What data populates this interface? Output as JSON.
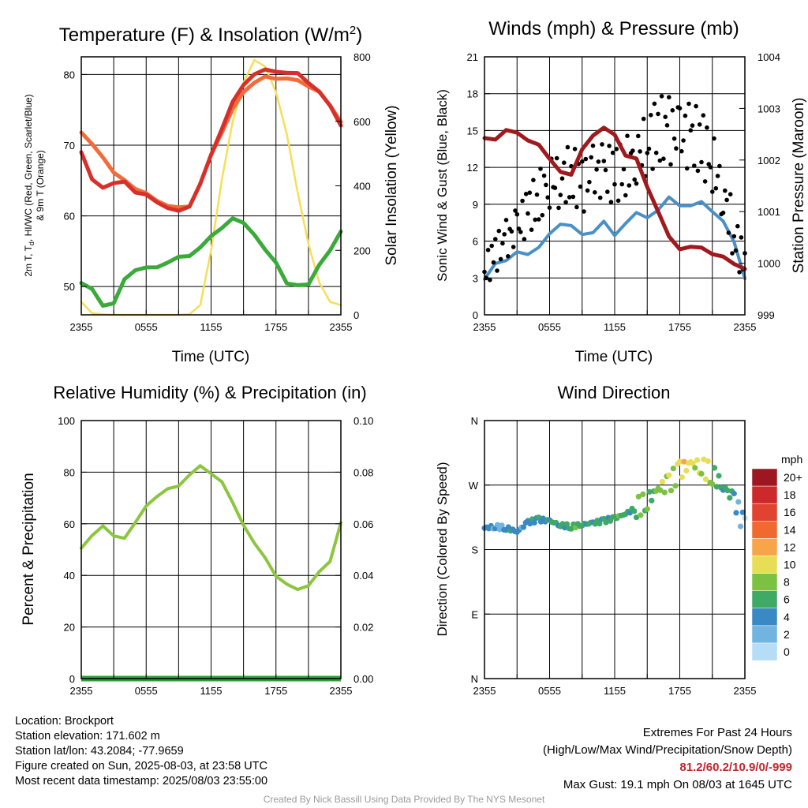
{
  "chart_data": [
    {
      "type": "line",
      "title": "Temperature (F) & Insolation (W/m²)",
      "xlabel": "Time (UTC)",
      "ylabel_lines": [
        "2m T, Td, HI/WC (Red, Green, Scarlet/Blue)",
        "& 9m T (Orange)"
      ],
      "y2label": "Solar Insolation (Yellow)",
      "xticks": [
        "2355",
        "0555",
        "1155",
        "1755",
        "2355"
      ],
      "ylim": [
        46,
        82.5
      ],
      "yticks": [
        50,
        60,
        70,
        80
      ],
      "y2lim": [
        0,
        800
      ],
      "y2ticks": [
        0,
        200,
        400,
        600,
        800
      ],
      "x_hours": [
        0,
        1,
        2,
        3,
        4,
        5,
        6,
        7,
        8,
        9,
        10,
        11,
        12,
        13,
        14,
        15,
        16,
        17,
        18,
        19,
        20,
        21,
        22,
        23,
        24
      ],
      "series": [
        {
          "color": "#d7302a",
          "axis": "left",
          "values": [
            69.0,
            65.0,
            64.2,
            64.5,
            64.8,
            63.5,
            62.8,
            62.0,
            61.2,
            60.5,
            61.5,
            64.5,
            68.5,
            72.5,
            76.0,
            78.5,
            80.2,
            80.5,
            80.5,
            80.3,
            80.0,
            79.0,
            77.5,
            75.5,
            73.0
          ]
        },
        {
          "color": "#f26b3a",
          "axis": "left",
          "values": [
            71.8,
            70.0,
            68.5,
            66.0,
            65.0,
            64.0,
            63.0,
            62.2,
            61.5,
            61.0,
            61.5,
            64.5,
            68.5,
            72.0,
            75.0,
            77.5,
            79.0,
            79.5,
            79.5,
            79.5,
            79.0,
            78.5,
            77.5,
            75.5,
            73.5
          ]
        },
        {
          "color": "#3aaa3a",
          "axis": "left",
          "values": [
            50.5,
            49.5,
            47.5,
            47.5,
            51.0,
            52.5,
            52.5,
            52.8,
            53.5,
            54.0,
            54.5,
            55.5,
            57.0,
            58.5,
            59.5,
            59.0,
            57.5,
            55.0,
            53.5,
            50.5,
            50.0,
            50.5,
            53.0,
            55.0,
            58.0
          ]
        },
        {
          "color": "#f6df55",
          "axis": "right",
          "values": [
            40,
            5,
            2,
            0,
            0,
            0,
            0,
            0,
            0,
            0,
            2,
            30,
            200,
            420,
            600,
            720,
            790,
            770,
            690,
            560,
            380,
            220,
            100,
            40,
            30
          ]
        }
      ]
    },
    {
      "type": "line",
      "title": "Winds (mph) & Pressure (mb)",
      "xlabel": "Time (UTC)",
      "ylabel": "Sonic Wind & Gust (Blue, Black)",
      "y2label": "Station Pressure (Maroon)",
      "xticks": [
        "2355",
        "0555",
        "1155",
        "1755",
        "2355"
      ],
      "ylim": [
        0,
        21
      ],
      "yticks": [
        0,
        3,
        6,
        9,
        12,
        15,
        18,
        21
      ],
      "y2lim": [
        999,
        1004
      ],
      "y2ticks": [
        999,
        1000,
        1001,
        1002,
        1003,
        1004
      ],
      "x_hours": [
        0,
        1,
        2,
        3,
        4,
        5,
        6,
        7,
        8,
        9,
        10,
        11,
        12,
        13,
        14,
        15,
        16,
        17,
        18,
        19,
        20,
        21,
        22,
        23,
        24
      ],
      "series": [
        {
          "color": "#4a90c8",
          "axis": "left",
          "kind": "line",
          "values": [
            2.8,
            4.2,
            4.5,
            5.0,
            5.0,
            5.5,
            6.5,
            7.5,
            7.2,
            6.5,
            6.8,
            7.5,
            6.5,
            7.5,
            8.2,
            8.0,
            8.5,
            9.5,
            9.0,
            8.8,
            9.2,
            8.5,
            7.5,
            6.0,
            3.0
          ]
        },
        {
          "color": "#000000",
          "axis": "left",
          "kind": "points",
          "values": [
            3.5,
            5.0,
            6.0,
            7.0,
            8.5,
            9.5,
            11.0,
            11.0,
            11.5,
            10.5,
            11.5,
            11.5,
            11.5,
            12.0,
            13.0,
            14.0,
            15.0,
            15.0,
            14.5,
            14.5,
            14.0,
            12.5,
            10.0,
            6.5,
            4.0
          ]
        },
        {
          "color": "#a01a1d",
          "axis": "right",
          "kind": "line",
          "values": [
            1002.4,
            1002.4,
            1002.6,
            1002.5,
            1002.4,
            1002.3,
            1002.0,
            1001.8,
            1001.7,
            1002.2,
            1002.5,
            1002.6,
            1002.5,
            1002.1,
            1002.0,
            1001.5,
            1001.0,
            1000.5,
            1000.3,
            1000.3,
            1000.3,
            1000.2,
            1000.1,
            1000.0,
            999.9
          ]
        }
      ]
    },
    {
      "type": "line",
      "title": "Relative Humidity (%) & Precipitation (in)",
      "ylabel": "Percent & Precipitation",
      "xticks": [
        "2355",
        "0555",
        "1155",
        "1755",
        "2355"
      ],
      "ylim": [
        0,
        100
      ],
      "yticks": [
        0,
        20,
        40,
        60,
        80,
        100
      ],
      "y2lim": [
        0,
        0.1
      ],
      "y2ticks": [
        "0.00",
        "0.02",
        "0.04",
        "0.06",
        "0.08",
        "0.10"
      ],
      "x_hours": [
        0,
        1,
        2,
        3,
        4,
        5,
        6,
        7,
        8,
        9,
        10,
        11,
        12,
        13,
        14,
        15,
        16,
        17,
        18,
        19,
        20,
        21,
        22,
        23,
        24
      ],
      "series": [
        {
          "color": "#8cc63f",
          "axis": "left",
          "values": [
            50,
            56,
            59,
            55,
            55,
            60,
            67,
            71,
            73,
            75,
            79,
            82,
            80,
            76,
            68,
            60,
            52,
            47,
            40,
            36,
            35,
            36,
            41,
            46,
            60
          ]
        },
        {
          "color": "#2e9e3a",
          "axis": "right",
          "values": [
            0,
            0,
            0,
            0,
            0,
            0,
            0,
            0,
            0,
            0,
            0,
            0,
            0,
            0,
            0,
            0,
            0,
            0,
            0,
            0,
            0,
            0,
            0,
            0,
            0
          ]
        }
      ]
    },
    {
      "type": "scatter",
      "title": "Wind Direction",
      "ylabel": "Direction (Colored By Speed)",
      "xticks": [
        "2355",
        "0555",
        "1155",
        "1755",
        "2355"
      ],
      "ylim": [
        0,
        360
      ],
      "yticks": [
        "N",
        "E",
        "S",
        "W",
        "N"
      ],
      "x_hours": [
        0,
        1,
        2,
        3,
        4,
        5,
        6,
        7,
        8,
        9,
        10,
        11,
        12,
        13,
        14,
        15,
        16,
        17,
        18,
        19,
        20,
        21,
        22,
        23,
        24
      ],
      "direction": [
        210,
        212,
        210,
        205,
        218,
        222,
        220,
        214,
        212,
        215,
        217,
        220,
        224,
        230,
        238,
        248,
        265,
        272,
        290,
        300,
        296,
        285,
        268,
        250,
        210
      ],
      "speed": [
        3,
        3,
        4,
        4,
        4,
        5,
        5,
        6,
        6,
        6,
        5,
        6,
        6,
        6,
        7,
        7,
        8,
        9,
        10,
        10,
        9,
        7,
        5,
        4,
        2
      ],
      "legend": {
        "unit": "mph",
        "labels": [
          "20+",
          "18",
          "16",
          "14",
          "12",
          "10",
          "8",
          "6",
          "4",
          "2",
          "0"
        ],
        "colors": [
          "#9e1620",
          "#cc2a2a",
          "#e0432f",
          "#f06a30",
          "#f8a448",
          "#e8de55",
          "#7cc242",
          "#3fa966",
          "#3b89c4",
          "#72b4e0",
          "#b5ddf5"
        ]
      }
    }
  ],
  "footer": {
    "location": "Location: Brockport",
    "elevation": "Station elevation: 171.602 m",
    "latlon": "Station lat/lon: 43.2084; -77.9659",
    "created": "Figure created on Sun, 2025-08-03, at 23:58 UTC",
    "recent": "Most recent data timestamp: 2025/08/03 23:55:00",
    "extremes_title": "Extremes For Past 24 Hours",
    "extremes_fields": "(High/Low/Max Wind/Precipitation/Snow Depth)",
    "extremes_values": "81.2/60.2/10.9/0/-999",
    "max_gust": "Max Gust: 19.1 mph On 08/03 at 1645 UTC",
    "credit": "Created By Nick Bassill Using Data Provided By The NYS Mesonet"
  }
}
